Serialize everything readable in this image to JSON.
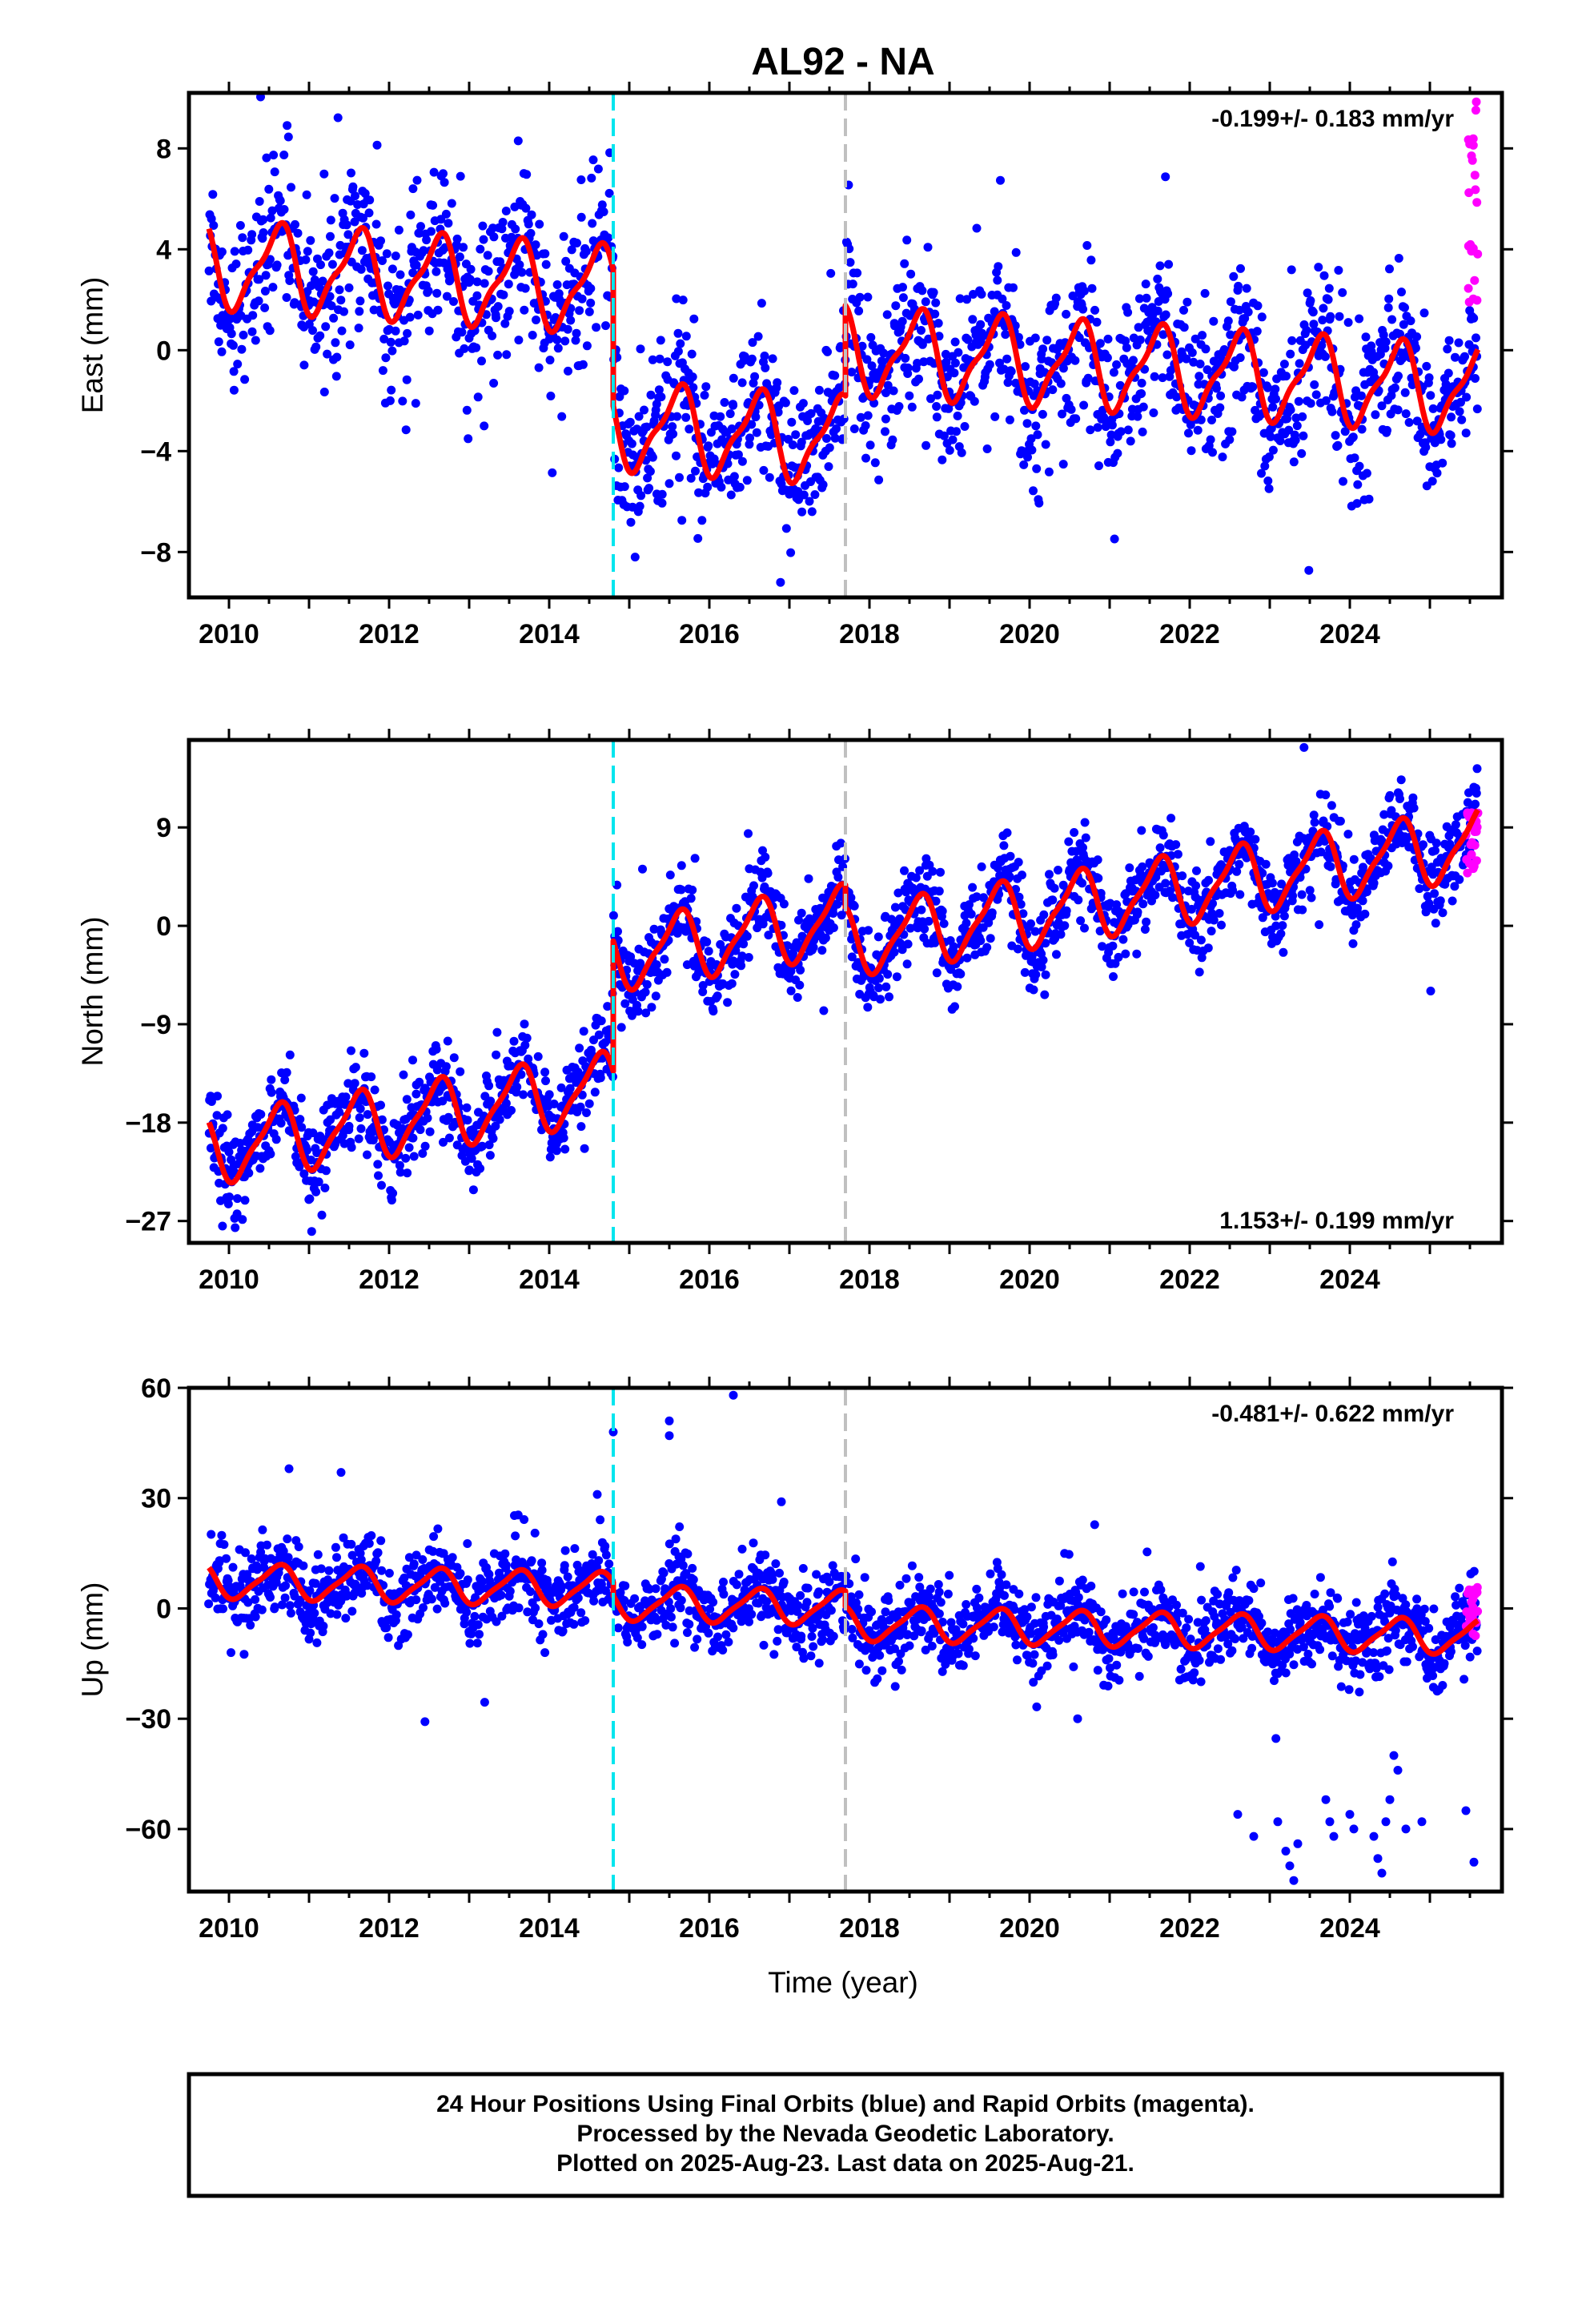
{
  "title": "AL92 - NA",
  "colors": {
    "final_points": "#0000ff",
    "rapid_points": "#ff00ff",
    "model": "#ff0000",
    "event_1": "#00e5ee",
    "event_2": "#c0c0c0"
  },
  "xaxis": {
    "label": "Time (year)",
    "range": [
      2009.5,
      2025.9
    ],
    "ticks": [
      "2010",
      "2012",
      "2014",
      "2016",
      "2018",
      "2020",
      "2022",
      "2024"
    ]
  },
  "events": [
    {
      "year": 2014.8,
      "color": "cyan",
      "style": "dashed"
    },
    {
      "year": 2017.7,
      "color": "gray",
      "style": "dashed"
    }
  ],
  "chart_data": [
    {
      "type": "scatter",
      "component": "east",
      "ylabel": "East (mm)",
      "ylim": [
        -9.8,
        10.2
      ],
      "yticks": [
        "8",
        "4",
        "0",
        "−4",
        "−8"
      ],
      "rate": "-0.199+/- 0.183 mm/yr",
      "rate_position": "top-right",
      "x_start": 2009.75,
      "x_end": 2025.6,
      "model_segments": [
        {
          "x0": 2009.75,
          "x1": 2014.8,
          "offset": 3.4,
          "slope": -0.199,
          "amp_annual": 1.6,
          "amp_semiannual": 0.5
        },
        {
          "x0": 2014.8,
          "x1": 2017.7,
          "offset": -3.0,
          "slope": -0.199,
          "amp_annual": 1.6,
          "amp_semiannual": 0.5
        },
        {
          "x0": 2017.7,
          "x1": 2025.6,
          "offset": 0.0,
          "slope": -0.199,
          "amp_annual": 1.6,
          "amp_semiannual": 0.5
        }
      ],
      "scatter_std": 1.6,
      "rapid": {
        "x0": 2025.45,
        "x1": 2025.6,
        "ymin": 1.5,
        "ymax": 9.9
      }
    },
    {
      "type": "scatter",
      "component": "north",
      "ylabel": "North (mm)",
      "ylim": [
        -29,
        17
      ],
      "yticks": [
        "9",
        "0",
        "−9",
        "−18",
        "−27"
      ],
      "rate": "1.153+/- 0.199 mm/yr",
      "rate_position": "bottom-right",
      "x_start": 2009.75,
      "x_end": 2025.6,
      "model_segments": [
        {
          "x0": 2009.75,
          "x1": 2014.8,
          "offset": -20.5,
          "slope": 1.153,
          "amp_annual": 3.0,
          "amp_semiannual": 0.8
        },
        {
          "x0": 2014.8,
          "x1": 2017.7,
          "offset": -2.8,
          "slope": 1.153,
          "amp_annual": 3.0,
          "amp_semiannual": 0.8
        },
        {
          "x0": 2017.7,
          "x1": 2025.6,
          "offset": -1.5,
          "slope": 1.153,
          "amp_annual": 3.0,
          "amp_semiannual": 0.8
        }
      ],
      "scatter_std": 2.0,
      "rapid": {
        "x0": 2025.45,
        "x1": 2025.6,
        "ymin": 4.0,
        "ymax": 10.5
      }
    },
    {
      "type": "scatter",
      "component": "up",
      "ylabel": "Up (mm)",
      "ylim": [
        -77,
        60
      ],
      "yticks": [
        "60",
        "30",
        "0",
        "−30",
        "−60"
      ],
      "rate": "-0.481+/- 0.622 mm/yr",
      "rate_position": "top-right",
      "x_start": 2009.75,
      "x_end": 2025.6,
      "model_segments": [
        {
          "x0": 2009.75,
          "x1": 2014.8,
          "offset": 7.5,
          "slope": -0.481,
          "amp_annual": 4.5,
          "amp_semiannual": 1.0
        },
        {
          "x0": 2014.8,
          "x1": 2017.7,
          "offset": 1.5,
          "slope": -0.481,
          "amp_annual": 4.5,
          "amp_semiannual": 1.0
        },
        {
          "x0": 2017.7,
          "x1": 2025.6,
          "offset": -4.0,
          "slope": -0.481,
          "amp_annual": 4.5,
          "amp_semiannual": 1.0
        }
      ],
      "scatter_std": 5.5,
      "rapid": {
        "x0": 2025.45,
        "x1": 2025.6,
        "ymin": -8,
        "ymax": 7
      },
      "outliers": [
        {
          "x": 2014.8,
          "y": 48
        },
        {
          "x": 2015.5,
          "y": 51
        },
        {
          "x": 2015.5,
          "y": 47
        },
        {
          "x": 2016.3,
          "y": 58
        },
        {
          "x": 2010.75,
          "y": 38
        },
        {
          "x": 2011.4,
          "y": 37
        },
        {
          "x": 2014.6,
          "y": 31
        },
        {
          "x": 2016.9,
          "y": 29
        },
        {
          "x": 2020.6,
          "y": -30
        },
        {
          "x": 2022.6,
          "y": -56
        },
        {
          "x": 2022.8,
          "y": -62
        },
        {
          "x": 2023.1,
          "y": -58
        },
        {
          "x": 2023.2,
          "y": -66
        },
        {
          "x": 2023.25,
          "y": -70
        },
        {
          "x": 2023.3,
          "y": -74
        },
        {
          "x": 2023.35,
          "y": -64
        },
        {
          "x": 2023.7,
          "y": -52
        },
        {
          "x": 2023.75,
          "y": -58
        },
        {
          "x": 2023.8,
          "y": -62
        },
        {
          "x": 2024.0,
          "y": -56
        },
        {
          "x": 2024.05,
          "y": -60
        },
        {
          "x": 2024.3,
          "y": -62
        },
        {
          "x": 2024.35,
          "y": -68
        },
        {
          "x": 2024.4,
          "y": -72
        },
        {
          "x": 2024.45,
          "y": -58
        },
        {
          "x": 2024.5,
          "y": -52
        },
        {
          "x": 2024.55,
          "y": -40
        },
        {
          "x": 2024.6,
          "y": -44
        },
        {
          "x": 2024.7,
          "y": -60
        },
        {
          "x": 2024.9,
          "y": -58
        },
        {
          "x": 2025.45,
          "y": -55
        },
        {
          "x": 2025.55,
          "y": -69
        }
      ]
    }
  ],
  "footer": {
    "line1": "24 Hour Positions Using Final Orbits (blue) and Rapid Orbits (magenta).",
    "line2": "Processed by the Nevada Geodetic Laboratory.",
    "line3": "Plotted on 2025-Aug-23. Last data on 2025-Aug-21."
  }
}
